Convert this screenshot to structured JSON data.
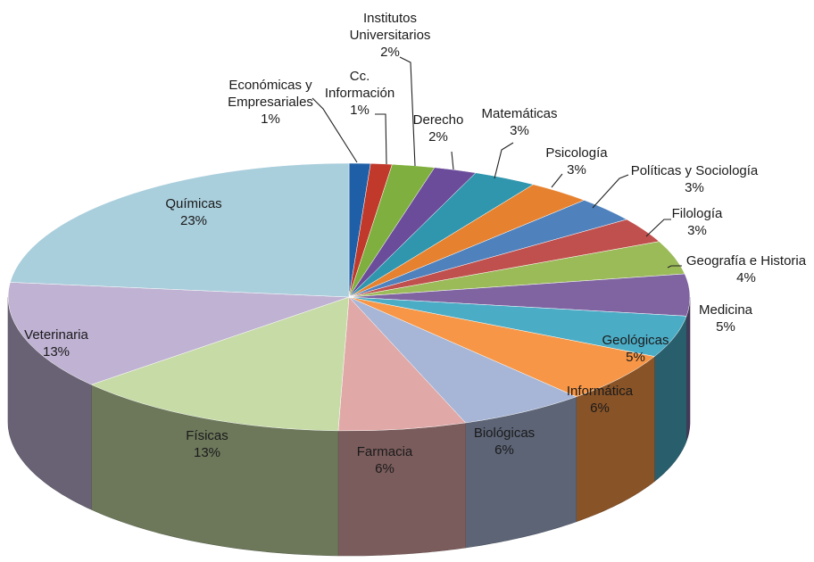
{
  "chart_data": {
    "type": "pie",
    "title": "",
    "slices": [
      {
        "label": "Económicas y Empresariales",
        "value": 1,
        "value_label": "1%",
        "color": "#1F5FA8"
      },
      {
        "label": "Cc. Información",
        "value": 1,
        "value_label": "1%",
        "color": "#C0392B"
      },
      {
        "label": "Institutos Universitarios",
        "value": 2,
        "value_label": "2%",
        "color": "#7FAF3F"
      },
      {
        "label": "Derecho",
        "value": 2,
        "value_label": "2%",
        "color": "#6B4C9A"
      },
      {
        "label": "Matemáticas",
        "value": 3,
        "value_label": "3%",
        "color": "#2F96AE"
      },
      {
        "label": "Psicología",
        "value": 3,
        "value_label": "3%",
        "color": "#E6822F"
      },
      {
        "label": "Políticas y Sociología",
        "value": 3,
        "value_label": "3%",
        "color": "#4F81BD"
      },
      {
        "label": "Filología",
        "value": 3,
        "value_label": "3%",
        "color": "#C0504D"
      },
      {
        "label": "Geografía e Historia",
        "value": 4,
        "value_label": "4%",
        "color": "#9BBB59"
      },
      {
        "label": "Medicina",
        "value": 5,
        "value_label": "5%",
        "color": "#8064A2"
      },
      {
        "label": "Geológicas",
        "value": 5,
        "value_label": "5%",
        "color": "#4BACC6"
      },
      {
        "label": "Informática",
        "value": 6,
        "value_label": "6%",
        "color": "#F79646"
      },
      {
        "label": "Biológicas",
        "value": 6,
        "value_label": "6%",
        "color": "#A7B5D6"
      },
      {
        "label": "Farmacia",
        "value": 6,
        "value_label": "6%",
        "color": "#E0A8A7"
      },
      {
        "label": "Físicas",
        "value": 13,
        "value_label": "13%",
        "color": "#C6DBA6"
      },
      {
        "label": "Veterinaria",
        "value": 13,
        "value_label": "13%",
        "color": "#BFB2D2"
      },
      {
        "label": "Químicas",
        "value": 23,
        "value_label": "23%",
        "color": "#A9CEDC"
      }
    ],
    "legend": "none",
    "labels": "outside with leader lines for small slices",
    "style": "3d"
  }
}
